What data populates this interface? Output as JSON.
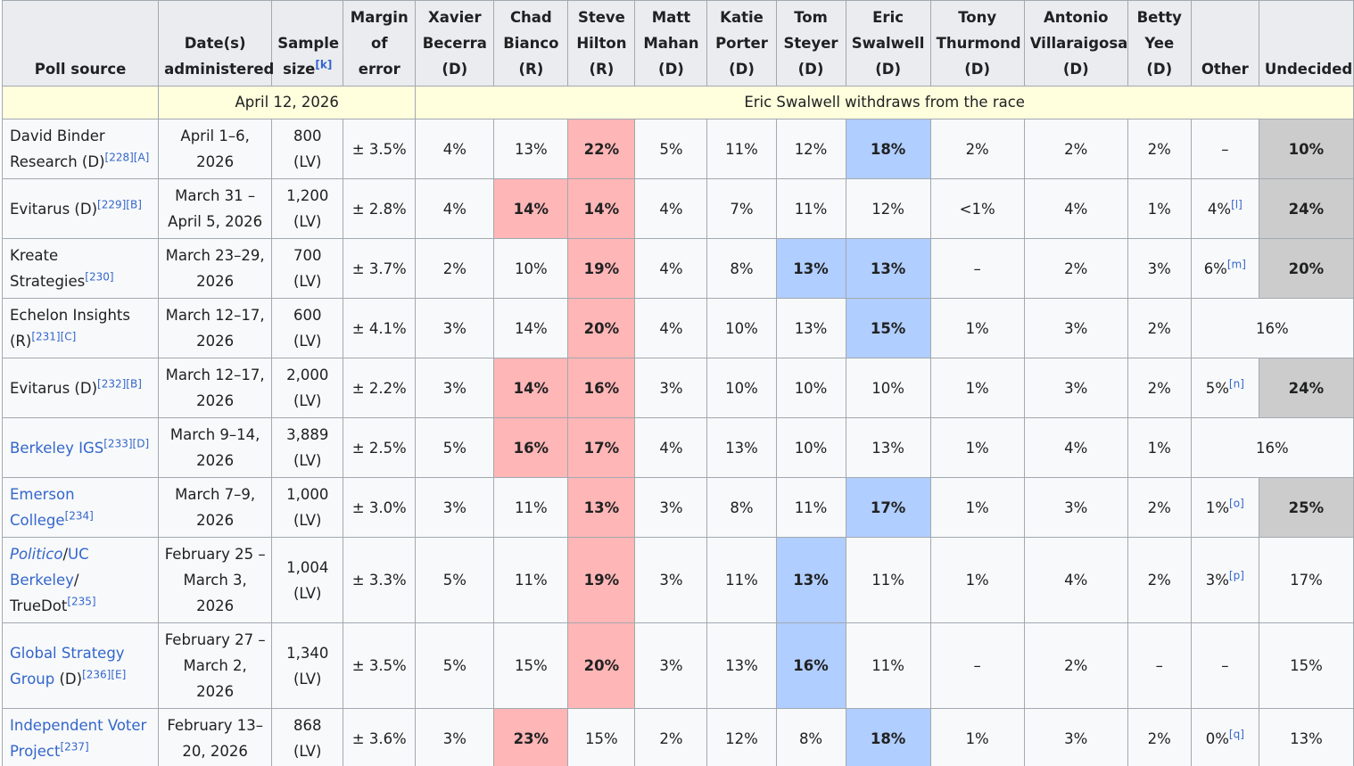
{
  "header": [
    {
      "lines": [
        "Poll source"
      ]
    },
    {
      "lines": [
        "Date(s)",
        "administered"
      ]
    },
    {
      "lines": [
        "Sample",
        "size"
      ],
      "note": "[k]"
    },
    {
      "lines": [
        "Margin",
        "of error"
      ]
    },
    {
      "lines": [
        "Xavier",
        "Becerra",
        "(D)"
      ]
    },
    {
      "lines": [
        "Chad",
        "Bianco",
        "(R)"
      ]
    },
    {
      "lines": [
        "Steve",
        "Hilton",
        "(R)"
      ]
    },
    {
      "lines": [
        "Matt",
        "Mahan",
        "(D)"
      ]
    },
    {
      "lines": [
        "Katie",
        "Porter",
        "(D)"
      ]
    },
    {
      "lines": [
        "Tom",
        "Steyer",
        "(D)"
      ]
    },
    {
      "lines": [
        "Eric",
        "Swalwell",
        "(D)"
      ]
    },
    {
      "lines": [
        "Tony",
        "Thurmond",
        "(D)"
      ]
    },
    {
      "lines": [
        "Antonio",
        "Villaraigosa",
        "(D)"
      ]
    },
    {
      "lines": [
        "Betty",
        "Yee",
        "(D)"
      ]
    },
    {
      "lines": [
        "Other"
      ]
    },
    {
      "lines": [
        "Undecided"
      ]
    }
  ],
  "event": {
    "date": "April 12, 2026",
    "text": "Eric Swalwell withdraws from the race"
  },
  "rows": [
    {
      "source": [
        {
          "text": "David Binder Research (D)",
          "style": "plain"
        }
      ],
      "refs": "[228][A]",
      "dates": [
        "April 1–6,",
        "2026"
      ],
      "sample": [
        "800",
        "(LV)"
      ],
      "moe": "± 3.5%",
      "cells": [
        {
          "text": "4%"
        },
        {
          "text": "13%"
        },
        {
          "text": "22%",
          "hl": "red"
        },
        {
          "text": "5%"
        },
        {
          "text": "11%"
        },
        {
          "text": "12%"
        },
        {
          "text": "18%",
          "hl": "blue"
        },
        {
          "text": "2%"
        },
        {
          "text": "2%"
        },
        {
          "text": "2%"
        },
        {
          "text": "–"
        },
        {
          "text": "10%",
          "hl": "gray"
        }
      ]
    },
    {
      "source": [
        {
          "text": "Evitarus (D)",
          "style": "plain"
        }
      ],
      "refs": "[229][B]",
      "dates": [
        "March 31 –",
        "April 5, 2026"
      ],
      "sample": [
        "1,200",
        "(LV)"
      ],
      "moe": "± 2.8%",
      "cells": [
        {
          "text": "4%"
        },
        {
          "text": "14%",
          "hl": "red"
        },
        {
          "text": "14%",
          "hl": "red"
        },
        {
          "text": "4%"
        },
        {
          "text": "7%"
        },
        {
          "text": "11%"
        },
        {
          "text": "12%"
        },
        {
          "text": "<1%"
        },
        {
          "text": "4%"
        },
        {
          "text": "1%"
        },
        {
          "text": "4%",
          "note": "[l]"
        },
        {
          "text": "24%",
          "hl": "gray"
        }
      ]
    },
    {
      "source": [
        {
          "text": "Kreate Strategies",
          "style": "plain"
        }
      ],
      "refs": "[230]",
      "dates": [
        "March 23–29,",
        "2026"
      ],
      "sample": [
        "700",
        "(LV)"
      ],
      "moe": "± 3.7%",
      "cells": [
        {
          "text": "2%"
        },
        {
          "text": "10%"
        },
        {
          "text": "19%",
          "hl": "red"
        },
        {
          "text": "4%"
        },
        {
          "text": "8%"
        },
        {
          "text": "13%",
          "hl": "blue"
        },
        {
          "text": "13%",
          "hl": "blue"
        },
        {
          "text": "–"
        },
        {
          "text": "2%"
        },
        {
          "text": "3%"
        },
        {
          "text": "6%",
          "note": "[m]"
        },
        {
          "text": "20%",
          "hl": "gray"
        }
      ]
    },
    {
      "source": [
        {
          "text": "Echelon Insights (R)",
          "style": "plain"
        }
      ],
      "refs": "[231][C]",
      "dates": [
        "March 12–17,",
        "2026"
      ],
      "sample": [
        "600",
        "(LV)"
      ],
      "moe": "± 4.1%",
      "cells": [
        {
          "text": "3%"
        },
        {
          "text": "14%"
        },
        {
          "text": "20%",
          "hl": "red"
        },
        {
          "text": "4%"
        },
        {
          "text": "10%"
        },
        {
          "text": "13%"
        },
        {
          "text": "15%",
          "hl": "blue"
        },
        {
          "text": "1%"
        },
        {
          "text": "3%"
        },
        {
          "text": "2%"
        },
        {
          "text": "16%",
          "span": 2
        }
      ]
    },
    {
      "source": [
        {
          "text": "Evitarus (D)",
          "style": "plain"
        }
      ],
      "refs": "[232][B]",
      "dates": [
        "March 12–17,",
        "2026"
      ],
      "sample": [
        "2,000",
        "(LV)"
      ],
      "moe": "± 2.2%",
      "cells": [
        {
          "text": "3%"
        },
        {
          "text": "14%",
          "hl": "red"
        },
        {
          "text": "16%",
          "hl": "red"
        },
        {
          "text": "3%"
        },
        {
          "text": "10%"
        },
        {
          "text": "10%"
        },
        {
          "text": "10%"
        },
        {
          "text": "1%"
        },
        {
          "text": "3%"
        },
        {
          "text": "2%"
        },
        {
          "text": "5%",
          "note": "[n]"
        },
        {
          "text": "24%",
          "hl": "gray"
        }
      ]
    },
    {
      "source": [
        {
          "text": "Berkeley IGS",
          "style": "link"
        }
      ],
      "refs": "[233][D]",
      "dates": [
        "March 9–14,",
        "2026"
      ],
      "sample": [
        "3,889",
        "(LV)"
      ],
      "moe": "± 2.5%",
      "cells": [
        {
          "text": "5%"
        },
        {
          "text": "16%",
          "hl": "red"
        },
        {
          "text": "17%",
          "hl": "red"
        },
        {
          "text": "4%"
        },
        {
          "text": "13%"
        },
        {
          "text": "10%"
        },
        {
          "text": "13%"
        },
        {
          "text": "1%"
        },
        {
          "text": "4%"
        },
        {
          "text": "1%"
        },
        {
          "text": "16%",
          "span": 2
        }
      ]
    },
    {
      "source": [
        {
          "text": "Emerson College",
          "style": "link"
        }
      ],
      "refs": "[234]",
      "dates": [
        "March 7–9,",
        "2026"
      ],
      "sample": [
        "1,000",
        "(LV)"
      ],
      "moe": "± 3.0%",
      "cells": [
        {
          "text": "3%"
        },
        {
          "text": "11%"
        },
        {
          "text": "13%",
          "hl": "red"
        },
        {
          "text": "3%"
        },
        {
          "text": "8%"
        },
        {
          "text": "11%"
        },
        {
          "text": "17%",
          "hl": "blue"
        },
        {
          "text": "1%"
        },
        {
          "text": "3%"
        },
        {
          "text": "2%"
        },
        {
          "text": "1%",
          "note": "[o]"
        },
        {
          "text": "25%",
          "hl": "gray"
        }
      ]
    },
    {
      "source": [
        {
          "text": "Politico",
          "style": "italic-link"
        },
        {
          "text": "/",
          "style": "plain"
        },
        {
          "text": "UC Berkeley",
          "style": "link"
        },
        {
          "text": "/ TrueDot",
          "style": "plain"
        }
      ],
      "refs": "[235]",
      "dates": [
        "February 25 –",
        "March 3,",
        "2026"
      ],
      "sample": [
        "1,004",
        "(LV)"
      ],
      "moe": "± 3.3%",
      "cells": [
        {
          "text": "5%"
        },
        {
          "text": "11%"
        },
        {
          "text": "19%",
          "hl": "red"
        },
        {
          "text": "3%"
        },
        {
          "text": "11%"
        },
        {
          "text": "13%",
          "hl": "blue"
        },
        {
          "text": "11%"
        },
        {
          "text": "1%"
        },
        {
          "text": "4%"
        },
        {
          "text": "2%"
        },
        {
          "text": "3%",
          "note": "[p]"
        },
        {
          "text": "17%"
        }
      ]
    },
    {
      "source": [
        {
          "text": "Global Strategy Group",
          "style": "link"
        },
        {
          "text": " (D)",
          "style": "plain"
        }
      ],
      "refs": "[236][E]",
      "dates": [
        "February 27 –",
        "March 2,",
        "2026"
      ],
      "sample": [
        "1,340",
        "(LV)"
      ],
      "moe": "± 3.5%",
      "cells": [
        {
          "text": "5%"
        },
        {
          "text": "15%"
        },
        {
          "text": "20%",
          "hl": "red"
        },
        {
          "text": "3%"
        },
        {
          "text": "13%"
        },
        {
          "text": "16%",
          "hl": "blue"
        },
        {
          "text": "11%"
        },
        {
          "text": "–"
        },
        {
          "text": "2%"
        },
        {
          "text": "–"
        },
        {
          "text": "–"
        },
        {
          "text": "15%"
        }
      ]
    },
    {
      "source": [
        {
          "text": "Independent Voter Project",
          "style": "link"
        }
      ],
      "refs": "[237]",
      "dates": [
        "February 13–",
        "20, 2026"
      ],
      "sample": [
        "868",
        "(LV)"
      ],
      "moe": "± 3.6%",
      "cells": [
        {
          "text": "3%"
        },
        {
          "text": "23%",
          "hl": "red"
        },
        {
          "text": "15%"
        },
        {
          "text": "2%"
        },
        {
          "text": "12%"
        },
        {
          "text": "8%"
        },
        {
          "text": "18%",
          "hl": "blue"
        },
        {
          "text": "1%"
        },
        {
          "text": "3%"
        },
        {
          "text": "2%"
        },
        {
          "text": "0%",
          "note": "[q]"
        },
        {
          "text": "13%"
        }
      ]
    }
  ]
}
